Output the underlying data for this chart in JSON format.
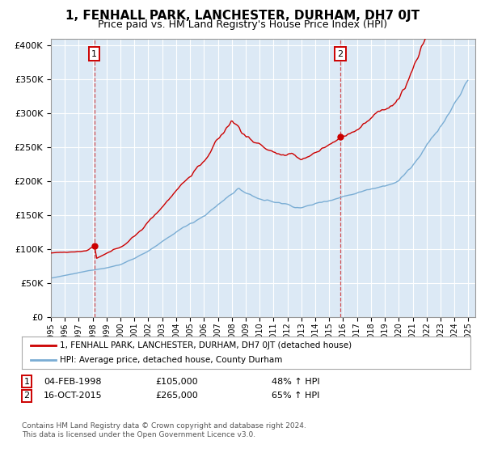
{
  "title": "1, FENHALL PARK, LANCHESTER, DURHAM, DH7 0JT",
  "subtitle": "Price paid vs. HM Land Registry's House Price Index (HPI)",
  "title_fontsize": 11,
  "subtitle_fontsize": 9,
  "bg_color": "#dce9f5",
  "grid_color": "#ffffff",
  "red_color": "#cc0000",
  "blue_color": "#7aadd4",
  "annotation1_date": "04-FEB-1998",
  "annotation1_price": "£105,000",
  "annotation1_hpi": "48% ↑ HPI",
  "annotation2_date": "16-OCT-2015",
  "annotation2_price": "£265,000",
  "annotation2_hpi": "65% ↑ HPI",
  "legend_line1": "1, FENHALL PARK, LANCHESTER, DURHAM, DH7 0JT (detached house)",
  "legend_line2": "HPI: Average price, detached house, County Durham",
  "footer1": "Contains HM Land Registry data © Crown copyright and database right 2024.",
  "footer2": "This data is licensed under the Open Government Licence v3.0.",
  "ylim": [
    0,
    410000
  ],
  "xlim_start": 1995.0,
  "xlim_end": 2025.5
}
